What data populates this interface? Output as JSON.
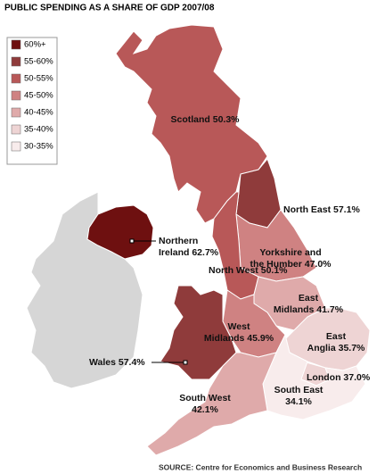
{
  "title": "PUBLIC SPENDING AS A SHARE OF GDP 2007/08",
  "legend": [
    {
      "label": "60%+",
      "color": "#6e1010"
    },
    {
      "label": "55-60%",
      "color": "#8f3b3b"
    },
    {
      "label": "50-55%",
      "color": "#b85858"
    },
    {
      "label": "45-50%",
      "color": "#cf8282"
    },
    {
      "label": "40-45%",
      "color": "#dfaaaa"
    },
    {
      "label": "35-40%",
      "color": "#eed4d4"
    },
    {
      "label": "30-35%",
      "color": "#f8ecec"
    }
  ],
  "regions": [
    {
      "label": [
        "Scotland 50.3%"
      ],
      "color": "#b85858"
    },
    {
      "label": [
        "North East 57.1%"
      ],
      "color": "#8f3b3b"
    },
    {
      "label": [
        "Yorkshire and",
        "the Humber 47.0%"
      ],
      "color": "#cf8282"
    },
    {
      "label": [
        "North West 50.1%"
      ],
      "color": "#b85858"
    },
    {
      "label": [
        "East",
        "Midlands 41.7%"
      ],
      "color": "#dfaaaa"
    },
    {
      "label": [
        "West",
        "Midlands 45.9%"
      ],
      "color": "#cf8282"
    },
    {
      "label": [
        "Wales 57.4%"
      ],
      "color": "#8f3b3b"
    },
    {
      "label": [
        "East",
        "Anglia 35.7%"
      ],
      "color": "#eed4d4"
    },
    {
      "label": [
        "London 37.0%"
      ],
      "color": "#eed4d4"
    },
    {
      "label": [
        "South East",
        "34.1%"
      ],
      "color": "#f8ecec"
    },
    {
      "label": [
        "South West",
        "42.1%"
      ],
      "color": "#dfaaaa"
    },
    {
      "label": [
        "Northern",
        "Ireland 62.7%"
      ],
      "color": "#6e1010"
    }
  ],
  "source": "SOURCE: Centre for Economics and Business Research"
}
